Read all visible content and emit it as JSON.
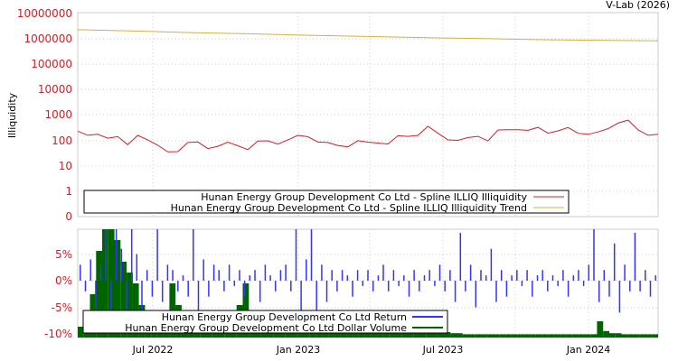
{
  "credit": "V-Lab (2026)",
  "chart_data": [
    {
      "type": "line",
      "ylabel": "Illiquidity",
      "yscale": "log",
      "yticks": [
        "10000000",
        "1000000",
        "100000",
        "10000",
        "1000",
        "100",
        "10",
        "1",
        "0"
      ],
      "xticks": [
        "Jul 2022",
        "Jan 2023",
        "Jul 2023",
        "Jan 2024"
      ],
      "xrange": [
        "2022-03-30",
        "2024-03-27"
      ],
      "legend_position": "bottom-left",
      "series": [
        {
          "name": "Hunan Energy Group Development Co Ltd - Spline ILLIQ Illiquidity",
          "color": "#d0202a",
          "values": [
            180,
            150,
            200,
            170,
            120,
            70,
            200,
            80,
            60,
            40,
            50,
            70,
            90,
            60,
            45,
            80,
            70,
            60,
            80,
            100,
            90,
            80,
            150,
            160,
            120,
            70,
            65,
            70,
            75,
            80,
            90,
            100,
            130,
            150,
            200,
            280,
            180,
            120,
            140,
            110,
            150,
            120,
            200,
            250,
            300,
            350,
            280,
            200,
            300,
            250,
            180,
            200,
            300,
            250,
            500,
            800,
            200,
            150,
            200
          ]
        },
        {
          "name": "Hunan Energy Group Development Co Ltd - Spline ILLIQ Illiquidity Trend",
          "color": "#d4b040",
          "values": [
            2500000,
            2200000,
            1900000,
            1700000,
            1500000,
            1350000,
            1200000,
            1100000,
            1000000,
            950000,
            900000
          ]
        }
      ]
    },
    {
      "type": "bar",
      "yticks": [
        "5%",
        "0%",
        "-5%",
        "-10%"
      ],
      "ylim": [
        -10,
        10
      ],
      "xticks": [
        "Jul 2022",
        "Jan 2023",
        "Jul 2023",
        "Jan 2024"
      ],
      "legend_position": "bottom-left",
      "series": [
        {
          "name": "Hunan Energy Group Development Co Ltd Return",
          "color": "#3333ff",
          "values": [
            3,
            -2,
            4,
            -5,
            3,
            10,
            -10,
            10,
            6,
            -8,
            10,
            5,
            -6,
            2,
            -3,
            10,
            -4,
            3,
            2,
            -2,
            1,
            -3,
            10,
            -8,
            4,
            -3,
            3,
            2,
            -2,
            3,
            -1,
            2,
            -3,
            1,
            2,
            -4,
            3,
            1,
            -2,
            2,
            3,
            -2,
            10,
            -10,
            4,
            10,
            -6,
            3,
            -4,
            2,
            -2,
            2,
            1,
            -3,
            2,
            -1,
            2,
            -2,
            1,
            3,
            -2,
            2,
            -1,
            1,
            -3,
            2,
            -2,
            1,
            2,
            -1,
            3,
            -2,
            2,
            -4,
            9,
            -2,
            3,
            -5,
            2,
            1,
            6,
            -4,
            2,
            -3,
            1,
            2,
            -1,
            2,
            -3,
            1,
            2,
            -2,
            1,
            -1,
            2,
            -3,
            1,
            2,
            -1,
            3,
            10,
            -4,
            2,
            -3,
            7,
            -6,
            3,
            -2,
            9,
            -2,
            2,
            -3,
            1
          ]
        },
        {
          "name": "Hunan Energy Group Development Co Ltd Dollar Volume",
          "color": "#006400",
          "values": [
            1,
            2,
            4,
            8,
            10,
            10,
            9,
            7,
            6,
            5,
            3,
            2,
            1,
            1,
            2,
            5,
            3,
            1,
            1,
            1,
            1,
            1,
            1,
            1,
            1,
            2,
            3,
            5,
            2,
            1,
            1,
            1,
            1,
            1,
            1,
            1,
            1,
            1,
            0.5,
            0.5,
            0.5,
            0.5,
            0.5,
            0.5,
            0.5,
            0.5,
            0.5,
            0.5,
            0.5,
            0.5,
            0.5,
            0.5,
            0.5,
            0.6,
            0.7,
            0.8,
            1,
            0.8,
            0.6,
            0.5,
            0.5,
            0.4,
            0.4,
            0.3,
            0.3,
            0.3,
            0.3,
            0.3,
            0.3,
            0.3,
            0.3,
            0.3,
            0.3,
            0.3,
            0.3,
            0.3,
            0.3,
            0.3,
            0.3,
            0.3,
            0.3,
            0.3,
            0.3,
            0.3,
            0.3,
            1.5,
            0.6,
            0.4,
            0.4,
            0.3,
            0.3,
            0.3,
            0.3,
            0.3,
            0.3
          ]
        }
      ]
    }
  ]
}
